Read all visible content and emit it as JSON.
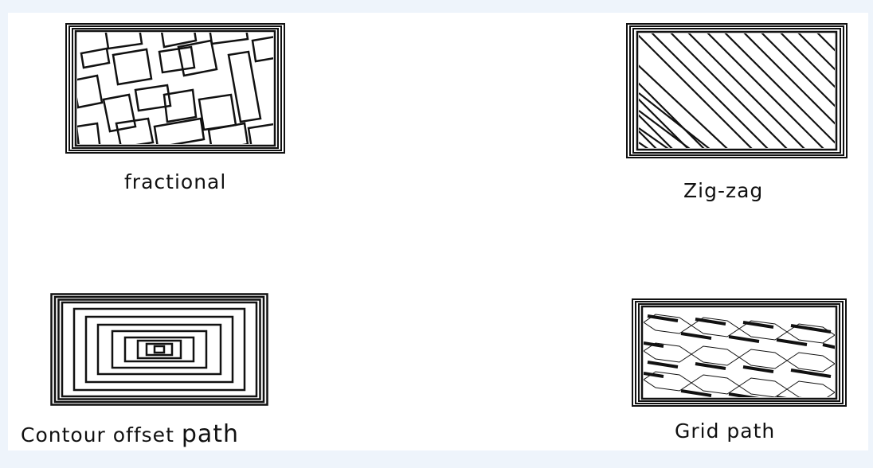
{
  "labels": {
    "fractional": "fractional",
    "zigzag": "Zig-zag",
    "contour_prefix": "Contour offset",
    "contour_suffix": "path",
    "grid": "Grid path"
  },
  "colors": {
    "page_background": "#eef4fb",
    "canvas_background": "#ffffff",
    "stroke": "#111111"
  }
}
